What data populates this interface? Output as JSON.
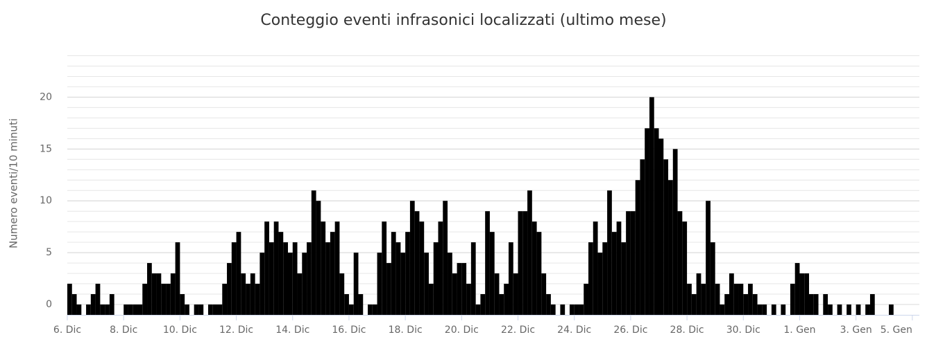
{
  "chart_data": {
    "type": "histogram",
    "title": "Conteggio eventi infrasonici localizzati (ultimo mese)",
    "y_label": "Numero eventi/10 minuti",
    "color": "#000000",
    "xlim": [
      0,
      726
    ],
    "ylim": [
      -1,
      24.5
    ],
    "yticks": [
      0,
      5,
      10,
      15,
      20
    ],
    "minor_grid_step": 1,
    "grid": true,
    "xticks": [
      {
        "value": 0,
        "label": "6. Dic"
      },
      {
        "value": 48,
        "label": "8. Dic"
      },
      {
        "value": 96,
        "label": "10. Dic"
      },
      {
        "value": 144,
        "label": "12. Dic"
      },
      {
        "value": 192,
        "label": "14. Dic"
      },
      {
        "value": 240,
        "label": "16. Dic"
      },
      {
        "value": 288,
        "label": "18. Dic"
      },
      {
        "value": 336,
        "label": "20. Dic"
      },
      {
        "value": 384,
        "label": "22. Dic"
      },
      {
        "value": 432,
        "label": "24. Dic"
      },
      {
        "value": 480,
        "label": "26. Dic"
      },
      {
        "value": 528,
        "label": "28. Dic"
      },
      {
        "value": 576,
        "label": "30. Dic"
      },
      {
        "value": 624,
        "label": "1. Gen"
      },
      {
        "value": 672,
        "label": "3. Gen"
      },
      {
        "value": 720,
        "label": "5. Gen"
      }
    ],
    "bins": [
      0,
      4,
      8,
      12,
      16,
      20,
      24,
      28,
      32,
      36,
      40,
      44,
      48,
      52,
      56,
      60,
      64,
      68,
      72,
      76,
      80,
      84,
      88,
      92,
      96,
      100,
      104,
      108,
      112,
      116,
      120,
      124,
      128,
      132,
      136,
      140,
      144,
      148,
      152,
      156,
      160,
      164,
      168,
      172,
      176,
      180,
      184,
      188,
      192,
      196,
      200,
      204,
      208,
      212,
      216,
      220,
      224,
      228,
      232,
      236,
      240,
      244,
      248,
      252,
      256,
      260,
      264,
      268,
      272,
      276,
      280,
      284,
      288,
      292,
      296,
      300,
      304,
      308,
      312,
      316,
      320,
      324,
      328,
      332,
      336,
      340,
      344,
      348,
      352,
      356,
      360,
      364,
      368,
      372,
      376,
      380,
      384,
      388,
      392,
      396,
      400,
      404,
      408,
      412,
      416,
      420,
      424,
      428,
      432,
      436,
      440,
      444,
      448,
      452,
      456,
      460,
      464,
      468,
      472,
      476,
      480,
      484,
      488,
      492,
      496,
      500,
      504,
      508,
      512,
      516,
      520,
      524,
      528,
      532,
      536,
      540,
      544,
      548,
      552,
      556,
      560,
      564,
      568,
      572,
      576,
      580,
      584,
      588,
      592,
      596,
      600,
      604,
      608,
      612,
      616,
      620,
      624,
      628,
      632,
      636,
      640,
      644,
      648,
      652,
      656,
      660,
      664,
      668,
      672,
      676,
      680,
      684,
      688,
      692,
      696,
      700,
      704,
      708,
      712,
      716,
      720
    ],
    "values": [
      2,
      1,
      0,
      null,
      0,
      1,
      2,
      0,
      0,
      1,
      null,
      null,
      0,
      0,
      0,
      0,
      2,
      4,
      3,
      3,
      2,
      2,
      3,
      6,
      1,
      0,
      null,
      0,
      0,
      null,
      0,
      0,
      0,
      2,
      4,
      6,
      7,
      3,
      2,
      3,
      2,
      5,
      8,
      6,
      8,
      7,
      6,
      5,
      6,
      3,
      5,
      6,
      11,
      10,
      8,
      6,
      7,
      8,
      3,
      1,
      0,
      5,
      1,
      null,
      0,
      0,
      5,
      8,
      4,
      7,
      6,
      5,
      7,
      10,
      9,
      8,
      5,
      2,
      6,
      8,
      10,
      5,
      3,
      4,
      4,
      2,
      6,
      0,
      1,
      9,
      7,
      3,
      1,
      2,
      6,
      3,
      9,
      9,
      11,
      8,
      7,
      3,
      1,
      0,
      null,
      0,
      null,
      0,
      0,
      0,
      2,
      6,
      8,
      5,
      6,
      11,
      7,
      8,
      6,
      9,
      9,
      12,
      14,
      17,
      20,
      17,
      16,
      14,
      12,
      15,
      9,
      8,
      2,
      1,
      3,
      2,
      10,
      6,
      2,
      0,
      1,
      3,
      2,
      2,
      1,
      2,
      1,
      0,
      0,
      null,
      0,
      null,
      0,
      null,
      2,
      4,
      3,
      3,
      1,
      1,
      null,
      1,
      0,
      null,
      0,
      null,
      0,
      null,
      0,
      null,
      0,
      1,
      null,
      null,
      null,
      0,
      null,
      null,
      null,
      null
    ]
  }
}
